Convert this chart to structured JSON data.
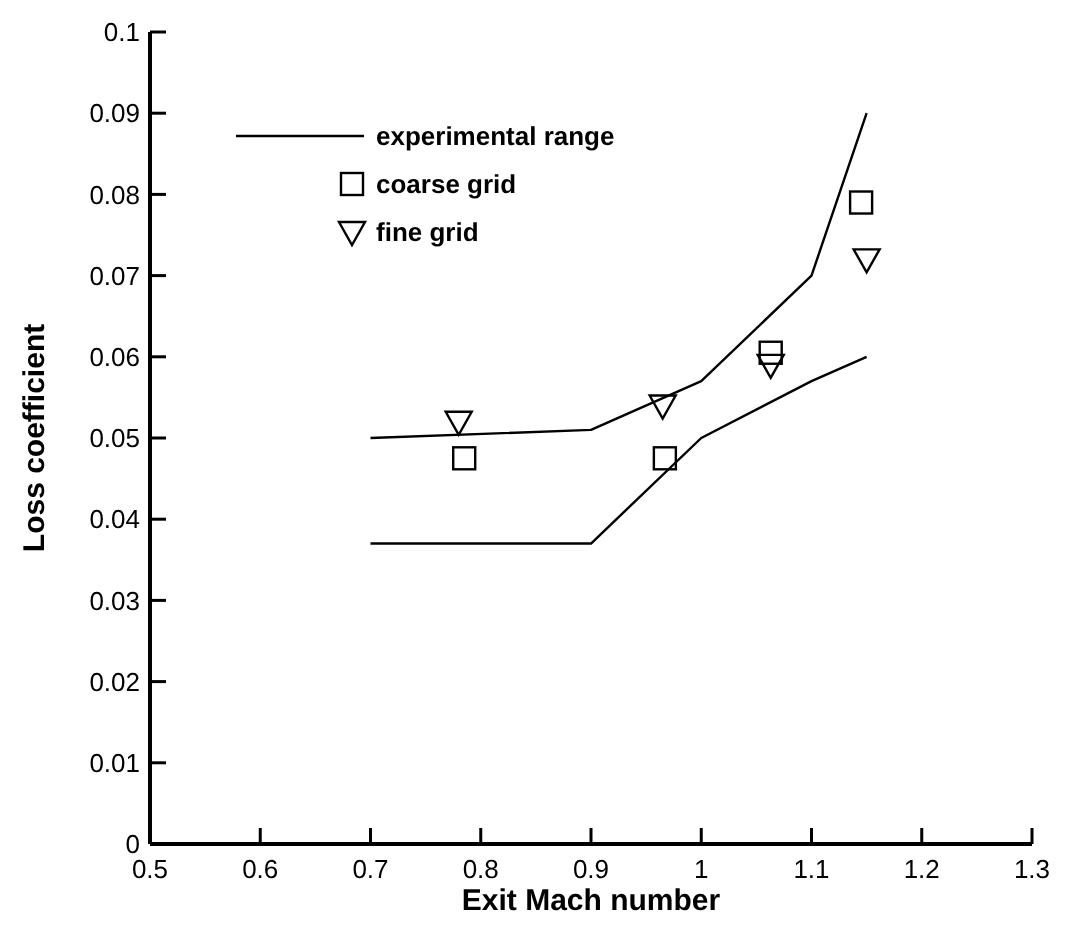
{
  "chart_data": {
    "type": "line",
    "xlabel": "Exit Mach number",
    "ylabel": "Loss coefficient",
    "xlim": [
      0.5,
      1.3
    ],
    "xticks": [
      0.5,
      0.6,
      0.7,
      0.8,
      0.9,
      1,
      1.1,
      1.2,
      1.3
    ],
    "ylim": [
      0,
      0.1
    ],
    "yticks": [
      0,
      0.01,
      0.02,
      0.03,
      0.04,
      0.05,
      0.06,
      0.07,
      0.08,
      0.09,
      0.1
    ],
    "grid": false,
    "legend": "top left",
    "series": [
      {
        "name": "experimental range",
        "color": "#000000",
        "marker": "none",
        "line_style": "solid",
        "x": [
          0.7,
          0.9,
          1.0,
          1.1,
          1.15
        ],
        "values": [
          0.05,
          0.051,
          0.057,
          0.07,
          0.09
        ]
      },
      {
        "color": "#000000",
        "marker": "none",
        "line_style": "solid",
        "x": [
          0.7,
          0.9,
          1.0,
          1.1,
          1.15
        ],
        "values": [
          0.037,
          0.037,
          0.05,
          0.057,
          0.06
        ]
      },
      {
        "name": "coarse grid",
        "type": "scatter",
        "color": "#000000",
        "marker": "square",
        "x": [
          0.785,
          0.967,
          1.063,
          1.145
        ],
        "values": [
          0.0475,
          0.0475,
          0.0605,
          0.079
        ]
      },
      {
        "name": "fine grid",
        "type": "scatter",
        "color": "#000000",
        "marker": "triangle",
        "x": [
          0.78,
          0.965,
          1.063,
          1.15
        ],
        "values": [
          0.052,
          0.054,
          0.059,
          0.072
        ]
      }
    ]
  }
}
